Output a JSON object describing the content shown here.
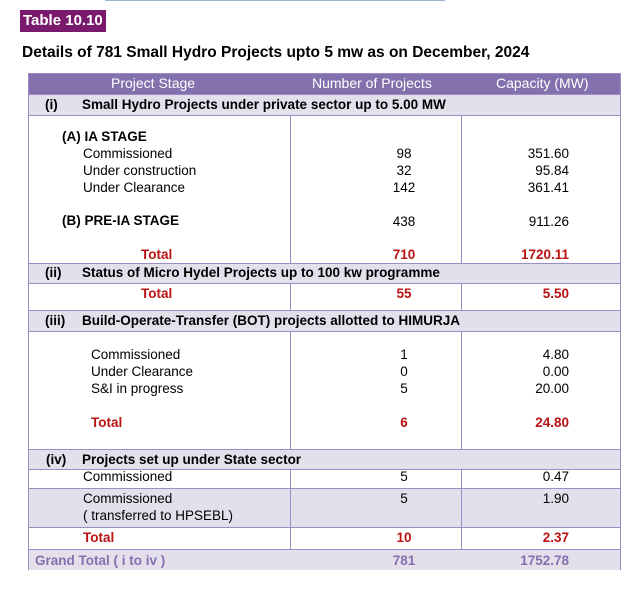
{
  "table_label": "Table 10.10",
  "title": "Details of 781 Small Hydro Projects upto 5 mw as on December, 2024",
  "header": {
    "stage": "Project Stage",
    "number": "Number of Projects",
    "capacity": "Capacity (MW)"
  },
  "section_i": {
    "num": "(i)",
    "title": "Small Hydro Projects under private sector up to 5.00 MW",
    "ia_stage": "(A) IA STAGE",
    "rows": [
      {
        "label": "Commissioned",
        "number": "98",
        "capacity": "351.60"
      },
      {
        "label": "Under construction",
        "number": "32",
        "capacity": "95.84"
      },
      {
        "label": "Under Clearance",
        "number": "142",
        "capacity": "361.41"
      }
    ],
    "pre_ia": {
      "label": "(B) PRE-IA STAGE",
      "number": "438",
      "capacity": "911.26"
    },
    "total": {
      "label": "Total",
      "number": "710",
      "capacity": "1720.11"
    }
  },
  "section_ii": {
    "num": "(ii)",
    "title": "Status of  Micro  Hydel Projects  up to 100 kw programme",
    "total": {
      "label": "Total",
      "number": "55",
      "capacity": "5.50"
    }
  },
  "section_iii": {
    "num": "(iii)",
    "title": "Build-Operate-Transfer (BOT) projects allotted to HIMURJA",
    "rows": [
      {
        "label": "Commissioned",
        "number": "1",
        "capacity": "4.80"
      },
      {
        "label": "Under Clearance",
        "number": "0",
        "capacity": "0.00"
      },
      {
        "label": "S&I in progress",
        "number": "5",
        "capacity": "20.00"
      }
    ],
    "total": {
      "label": "Total",
      "number": "6",
      "capacity": "24.80"
    }
  },
  "section_iv": {
    "num": "(iv)",
    "title": "Projects set up under State sector",
    "row1": {
      "label": "Commissioned",
      "number": "5",
      "capacity": "0.47"
    },
    "row2": {
      "label": "Commissioned",
      "sub": "( transferred to HPSEBL)",
      "number": "5",
      "capacity": "1.90"
    },
    "total": {
      "label": "Total",
      "number": "10",
      "capacity": "2.37"
    }
  },
  "grand_total": {
    "label": "Grand Total ( i to iv )",
    "number": "781",
    "capacity": "1752.78"
  },
  "colors": {
    "header": "#8470ad",
    "shade": "#e3e0ec",
    "total_red": "#b81212",
    "tag": "#7a1a6e"
  }
}
